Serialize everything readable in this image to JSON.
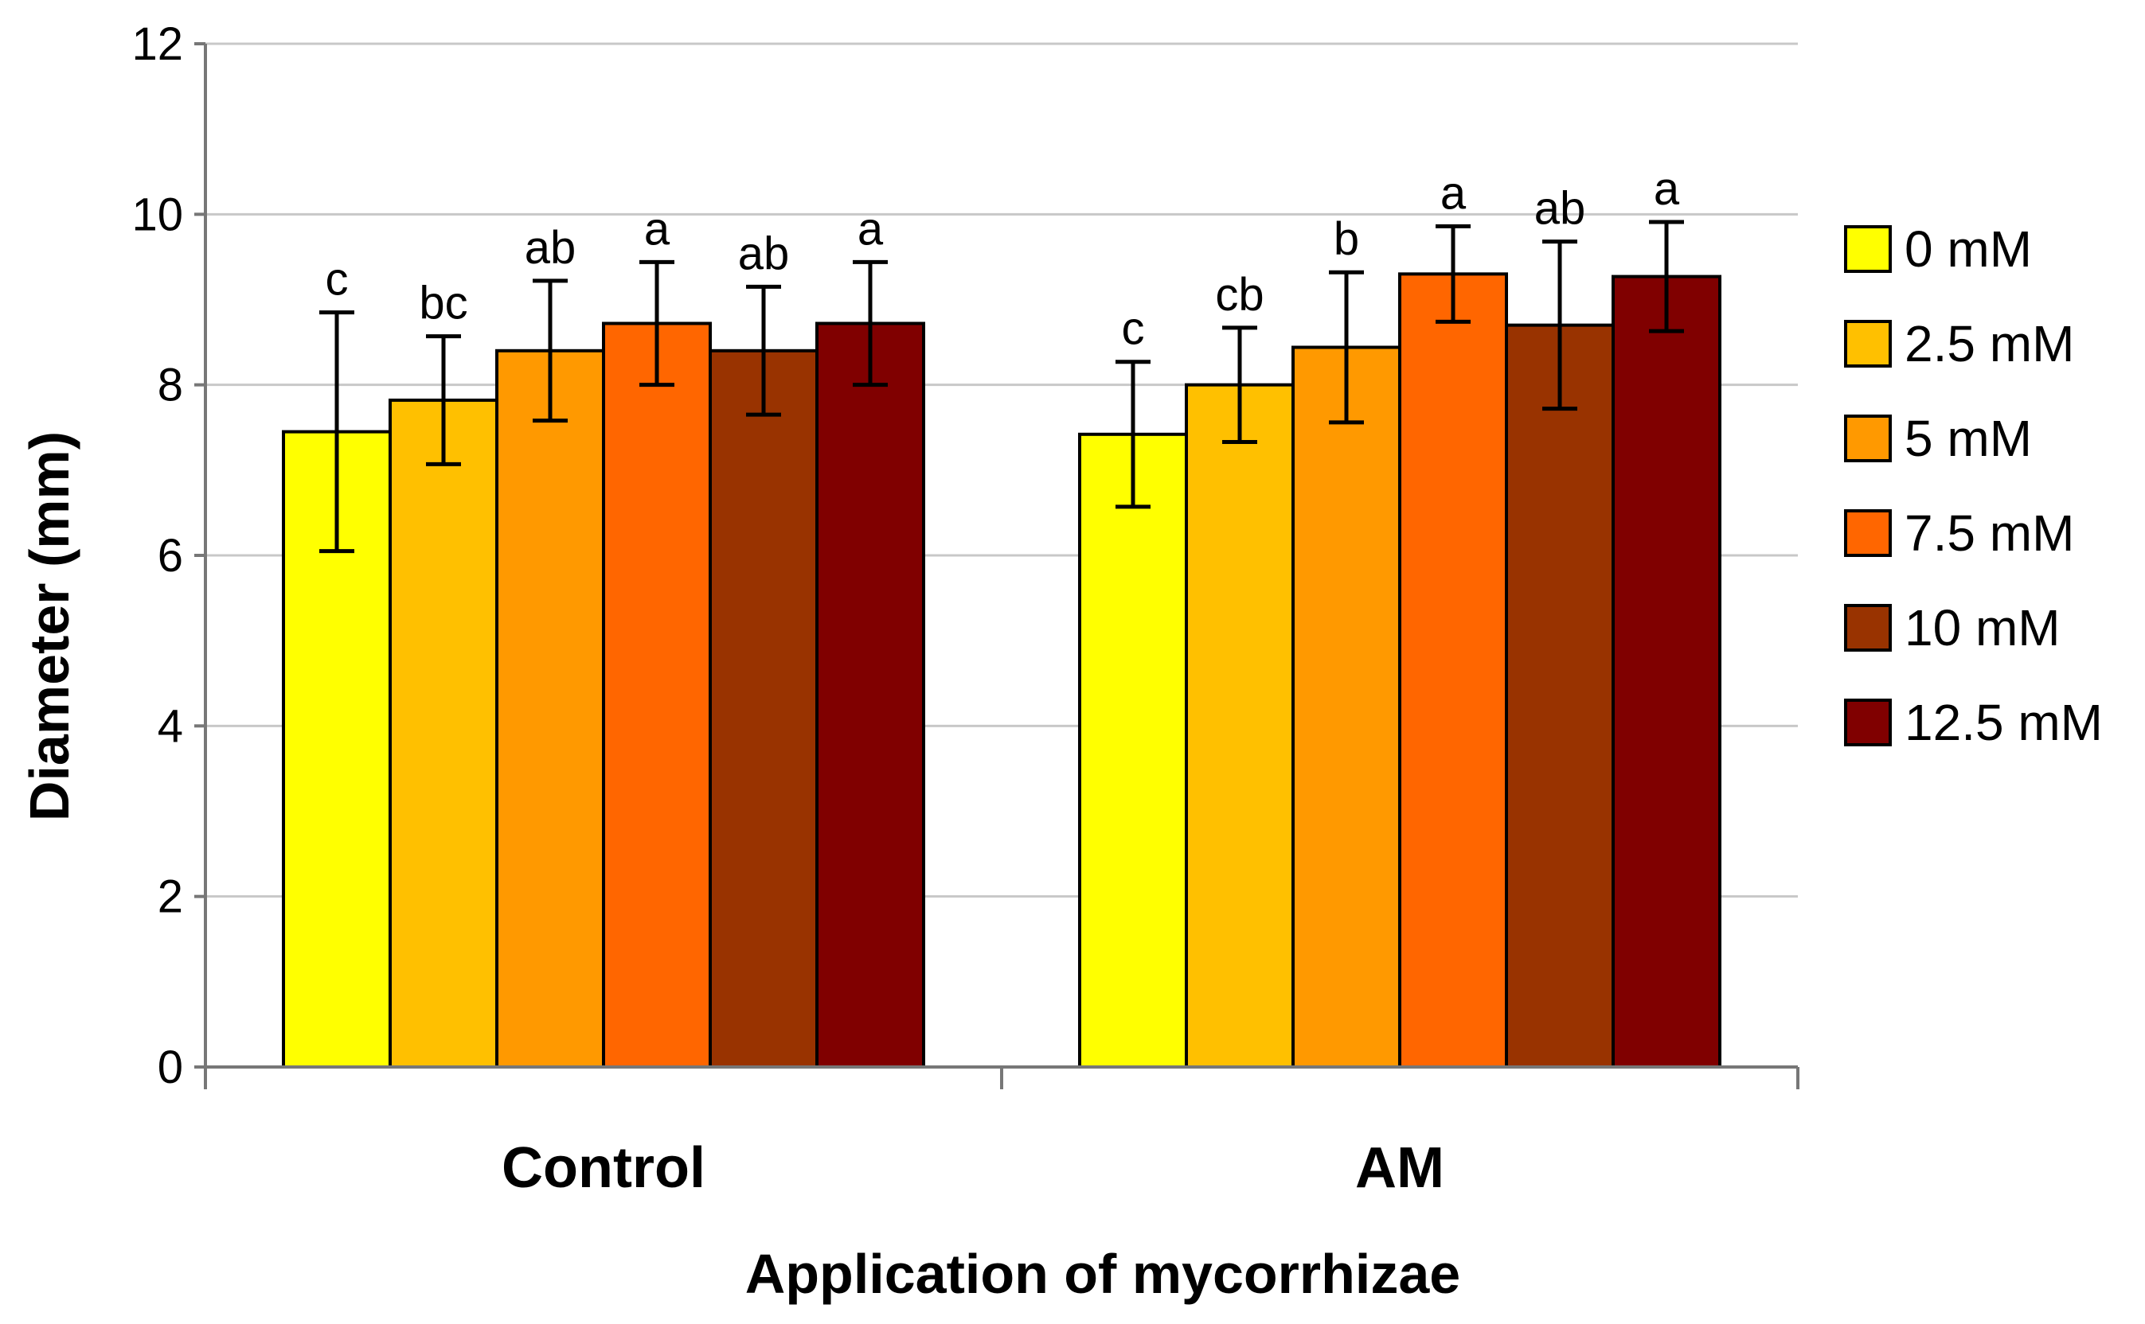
{
  "chart_data": {
    "type": "bar",
    "title": "",
    "xlabel": "Application of mycorrhizae",
    "ylabel": "Diameter  (mm)",
    "ylim": [
      0,
      12
    ],
    "yticks": [
      0,
      2,
      4,
      6,
      8,
      10,
      12
    ],
    "grid": true,
    "legend_position": "right",
    "categories": [
      "Control",
      "AM"
    ],
    "series": [
      {
        "name": "0 mM",
        "color": "#FFFF00",
        "values": [
          7.45,
          7.42
        ],
        "errors": [
          1.4,
          0.85
        ],
        "labels": [
          "c",
          "c"
        ]
      },
      {
        "name": "2.5 mM",
        "color": "#FFC000",
        "values": [
          7.82,
          8.0
        ],
        "errors": [
          0.75,
          0.67
        ],
        "labels": [
          "bc",
          "cb"
        ]
      },
      {
        "name": "5 mM",
        "color": "#FF9900",
        "values": [
          8.4,
          8.44
        ],
        "errors": [
          0.82,
          0.88
        ],
        "labels": [
          "ab",
          "b"
        ]
      },
      {
        "name": "7.5 mM",
        "color": "#FF6600",
        "values": [
          8.72,
          9.3
        ],
        "errors": [
          0.72,
          0.56
        ],
        "labels": [
          "a",
          "a"
        ]
      },
      {
        "name": "10 mM",
        "color": "#993300",
        "values": [
          8.4,
          8.7
        ],
        "errors": [
          0.75,
          0.98
        ],
        "labels": [
          "ab",
          "ab"
        ]
      },
      {
        "name": "12.5 mM",
        "color": "#800000",
        "values": [
          8.72,
          9.27
        ],
        "errors": [
          0.72,
          0.64
        ],
        "labels": [
          "a",
          "a"
        ]
      }
    ]
  }
}
